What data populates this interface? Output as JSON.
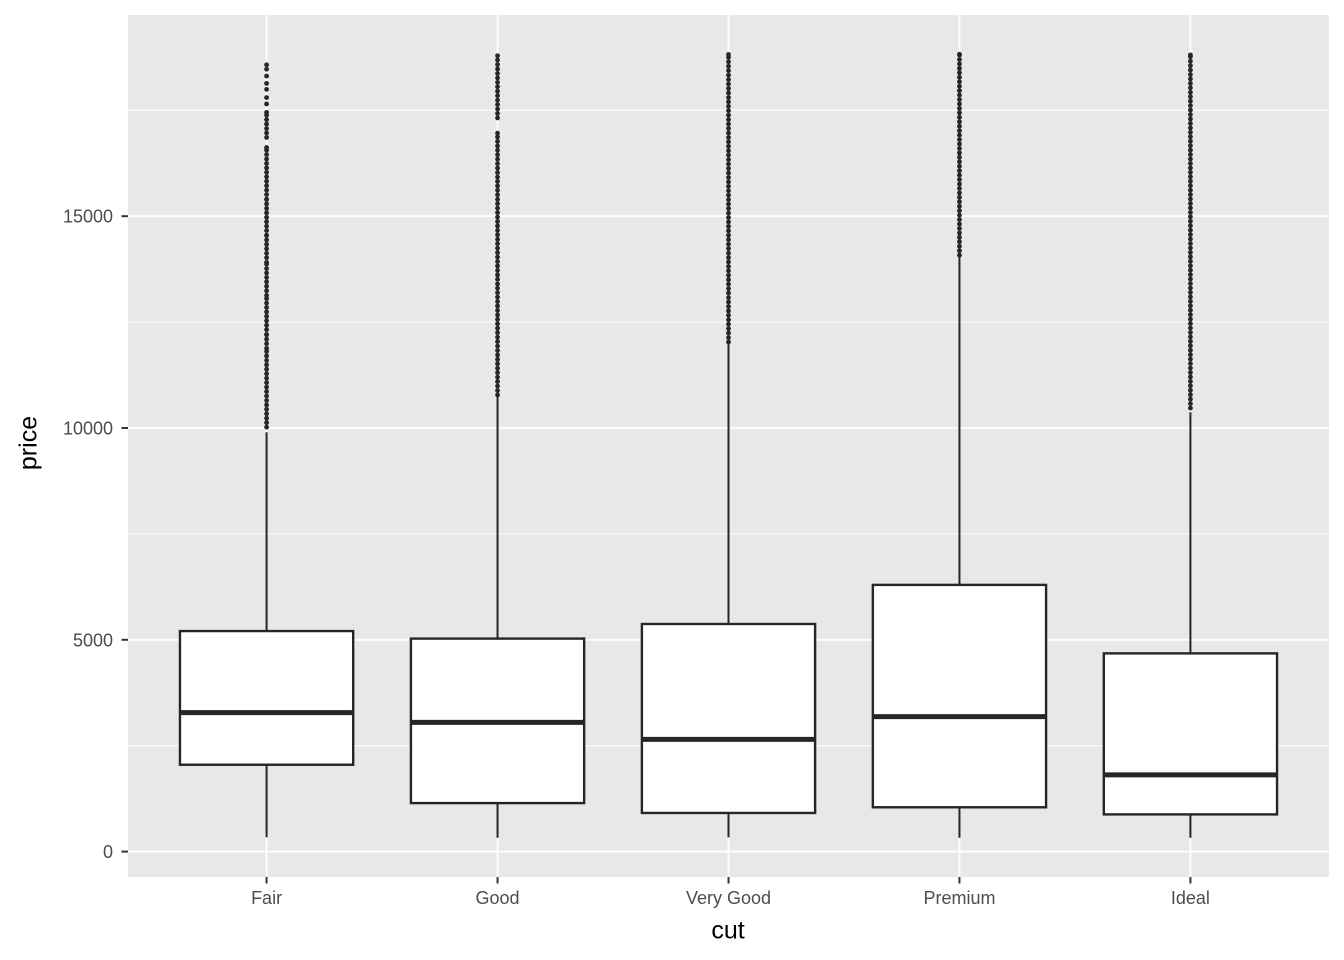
{
  "chart_data": {
    "type": "boxplot",
    "title": "",
    "xlabel": "cut",
    "ylabel": "price",
    "legend": "none",
    "grid": "on",
    "categories": [
      "Fair",
      "Good",
      "Very Good",
      "Premium",
      "Ideal"
    ],
    "y_axis": {
      "range": [
        -600,
        19750
      ],
      "major_ticks": [
        0,
        5000,
        10000,
        15000
      ],
      "tick_labels": [
        "0",
        "5000",
        "10000",
        "15000"
      ],
      "minor_ticks": [
        2500,
        7500,
        12500,
        17500
      ]
    },
    "boxes": [
      {
        "category": "Fair",
        "lower_whisker": 337,
        "q1": 2050,
        "median": 3282,
        "q3": 5206,
        "upper_whisker": 9900,
        "outlier_runs": [
          [
            10020,
            11880
          ],
          [
            11990,
            12210
          ],
          [
            12320,
            13130
          ],
          [
            13240,
            13910
          ],
          [
            14020,
            14550
          ],
          [
            14660,
            15400
          ],
          [
            15510,
            16620
          ],
          [
            16860,
            17450
          ]
        ],
        "outlier_points": [
          17650,
          17800,
          17995,
          18134,
          18308,
          18470,
          18574
        ]
      },
      {
        "category": "Good",
        "lower_whisker": 327,
        "q1": 1145,
        "median": 3050,
        "q3": 5028,
        "upper_whisker": 10830,
        "outlier_runs": [
          [
            10780,
            13400
          ],
          [
            13510,
            16960
          ],
          [
            17320,
            18788
          ]
        ],
        "outlier_points": []
      },
      {
        "category": "Very Good",
        "lower_whisker": 336,
        "q1": 912,
        "median": 2648,
        "q3": 5373,
        "upper_whisker": 12057,
        "outlier_runs": [
          [
            12030,
            18818
          ]
        ],
        "outlier_points": []
      },
      {
        "category": "Premium",
        "lower_whisker": 326,
        "q1": 1046,
        "median": 3185,
        "q3": 6296,
        "upper_whisker": 14160,
        "outlier_runs": [
          [
            14080,
            18823
          ]
        ],
        "outlier_points": []
      },
      {
        "category": "Ideal",
        "lower_whisker": 326,
        "q1": 878,
        "median": 1810,
        "q3": 4679,
        "upper_whisker": 10372,
        "outlier_runs": [
          [
            10470,
            18806
          ]
        ],
        "outlier_points": []
      }
    ],
    "style": {
      "panel_bg": "#E8E8E8",
      "grid_color": "#FFFFFF",
      "box_fill": "#FFFFFF",
      "line_color": "#262626",
      "tick_mark_color": "#333333",
      "tick_label_color": "#4D4D4D",
      "axis_title_color": "#000000"
    }
  }
}
